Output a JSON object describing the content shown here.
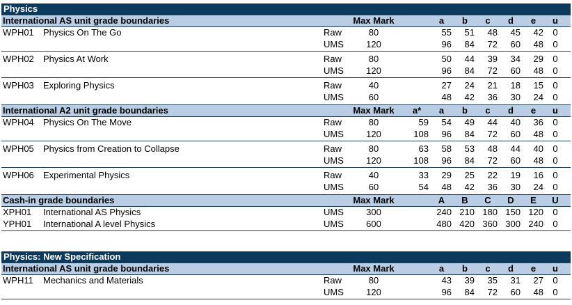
{
  "sections": [
    {
      "title": "Physics",
      "top": 0,
      "groups": [
        {
          "header": {
            "label": "International AS unit grade boundaries",
            "max": "Max Mark",
            "grades": [
              "",
              "a",
              "b",
              "c",
              "d",
              "e",
              "u"
            ]
          },
          "units": [
            {
              "code": "WPH01",
              "name": "Physics On The Go",
              "rows": [
                {
                  "type": "Raw",
                  "max": "80",
                  "g": [
                    "",
                    "55",
                    "51",
                    "48",
                    "45",
                    "42",
                    "0"
                  ]
                },
                {
                  "type": "UMS",
                  "max": "120",
                  "g": [
                    "",
                    "96",
                    "84",
                    "72",
                    "60",
                    "48",
                    "0"
                  ]
                }
              ]
            },
            {
              "code": "WPH02",
              "name": "Physics At Work",
              "rows": [
                {
                  "type": "Raw",
                  "max": "80",
                  "g": [
                    "",
                    "50",
                    "44",
                    "39",
                    "34",
                    "29",
                    "0"
                  ]
                },
                {
                  "type": "UMS",
                  "max": "120",
                  "g": [
                    "",
                    "96",
                    "84",
                    "72",
                    "60",
                    "48",
                    "0"
                  ]
                }
              ]
            },
            {
              "code": "WPH03",
              "name": "Exploring Physics",
              "rows": [
                {
                  "type": "Raw",
                  "max": "40",
                  "g": [
                    "",
                    "27",
                    "24",
                    "21",
                    "18",
                    "15",
                    "0"
                  ]
                },
                {
                  "type": "UMS",
                  "max": "60",
                  "g": [
                    "",
                    "48",
                    "42",
                    "36",
                    "30",
                    "24",
                    "0"
                  ]
                }
              ]
            }
          ]
        },
        {
          "header": {
            "label": "International A2 unit grade boundaries",
            "max": "Max Mark",
            "grades": [
              "a*",
              "a",
              "b",
              "c",
              "d",
              "e",
              "u"
            ]
          },
          "units": [
            {
              "code": "WPH04",
              "name": "Physics On The Move",
              "rows": [
                {
                  "type": "Raw",
                  "max": "80",
                  "g": [
                    "59",
                    "54",
                    "49",
                    "44",
                    "40",
                    "36",
                    "0"
                  ]
                },
                {
                  "type": "UMS",
                  "max": "120",
                  "g": [
                    "108",
                    "96",
                    "84",
                    "72",
                    "60",
                    "48",
                    "0"
                  ]
                }
              ]
            },
            {
              "code": "WPH05",
              "name": "Physics from Creation to Collapse",
              "rows": [
                {
                  "type": "Raw",
                  "max": "80",
                  "g": [
                    "63",
                    "58",
                    "53",
                    "48",
                    "44",
                    "40",
                    "0"
                  ]
                },
                {
                  "type": "UMS",
                  "max": "120",
                  "g": [
                    "108",
                    "96",
                    "84",
                    "72",
                    "60",
                    "48",
                    "0"
                  ]
                }
              ]
            },
            {
              "code": "WPH06",
              "name": "Experimental Physics",
              "rows": [
                {
                  "type": "Raw",
                  "max": "40",
                  "g": [
                    "33",
                    "29",
                    "25",
                    "22",
                    "19",
                    "16",
                    "0"
                  ]
                },
                {
                  "type": "UMS",
                  "max": "60",
                  "g": [
                    "54",
                    "48",
                    "42",
                    "36",
                    "30",
                    "24",
                    "0"
                  ]
                }
              ]
            }
          ]
        },
        {
          "header": {
            "label": "Cash-in grade boundaries",
            "max": "Max Mark",
            "grades": [
              "",
              "A",
              "B",
              "C",
              "D",
              "E",
              "U"
            ]
          },
          "cashin": [
            {
              "code": "XPH01",
              "name": "International AS Physics",
              "type": "UMS",
              "max": "300",
              "g": [
                "",
                "240",
                "210",
                "180",
                "150",
                "120",
                "0"
              ]
            },
            {
              "code": "YPH01",
              "name": "International A level Physics",
              "type": "UMS",
              "max": "600",
              "g": [
                "",
                "480",
                "420",
                "360",
                "300",
                "240",
                "0"
              ]
            }
          ]
        }
      ]
    },
    {
      "title": "Physics: New Specification",
      "groups": [
        {
          "header": {
            "label": "International AS unit grade boundaries",
            "max": "Max Mark",
            "grades": [
              "",
              "a",
              "b",
              "c",
              "d",
              "e",
              "u"
            ]
          },
          "units": [
            {
              "code": "WPH11",
              "name": "Mechanics and Materials",
              "rows": [
                {
                  "type": "Raw",
                  "max": "80",
                  "g": [
                    "",
                    "43",
                    "39",
                    "35",
                    "31",
                    "27",
                    "0"
                  ]
                },
                {
                  "type": "UMS",
                  "max": "120",
                  "g": [
                    "",
                    "96",
                    "84",
                    "72",
                    "60",
                    "48",
                    "0"
                  ]
                }
              ]
            }
          ]
        }
      ]
    }
  ]
}
